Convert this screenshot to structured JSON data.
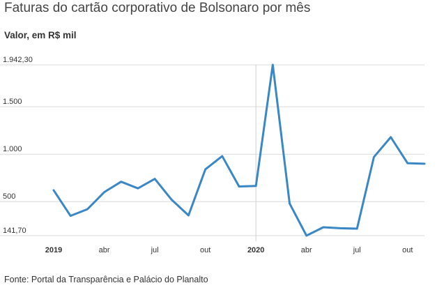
{
  "chart_data": {
    "type": "line",
    "title": "Faturas do cartão corporativo de Bolsonaro por mês",
    "subtitle": "Valor, em R$ mil",
    "source": "Fonte: Portal da Transparência e Palácio do Planalto",
    "y_ticks": [
      {
        "value": 141.7,
        "label": "141,70"
      },
      {
        "value": 500,
        "label": "500"
      },
      {
        "value": 1000,
        "label": "1.000"
      },
      {
        "value": 1500,
        "label": "1.500"
      },
      {
        "value": 1942.3,
        "label": "1.942,30"
      }
    ],
    "ylim": [
      141.7,
      1942.3
    ],
    "x_ticks": [
      {
        "index": 0,
        "label": "2019",
        "bold": true
      },
      {
        "index": 3,
        "label": "abr",
        "bold": false
      },
      {
        "index": 6,
        "label": "jul",
        "bold": false
      },
      {
        "index": 9,
        "label": "out",
        "bold": false
      },
      {
        "index": 12,
        "label": "2020",
        "bold": true
      },
      {
        "index": 15,
        "label": "abr",
        "bold": false
      },
      {
        "index": 18,
        "label": "jul",
        "bold": false
      },
      {
        "index": 21,
        "label": "out",
        "bold": false
      }
    ],
    "year_dividers": [
      12
    ],
    "grid": true,
    "series": [
      {
        "color": "#3a87c6",
        "values": [
          620,
          350,
          420,
          600,
          710,
          640,
          740,
          520,
          355,
          840,
          980,
          660,
          665,
          1942.3,
          480,
          141.7,
          230,
          220,
          215,
          970,
          1180,
          905,
          900
        ]
      }
    ]
  }
}
